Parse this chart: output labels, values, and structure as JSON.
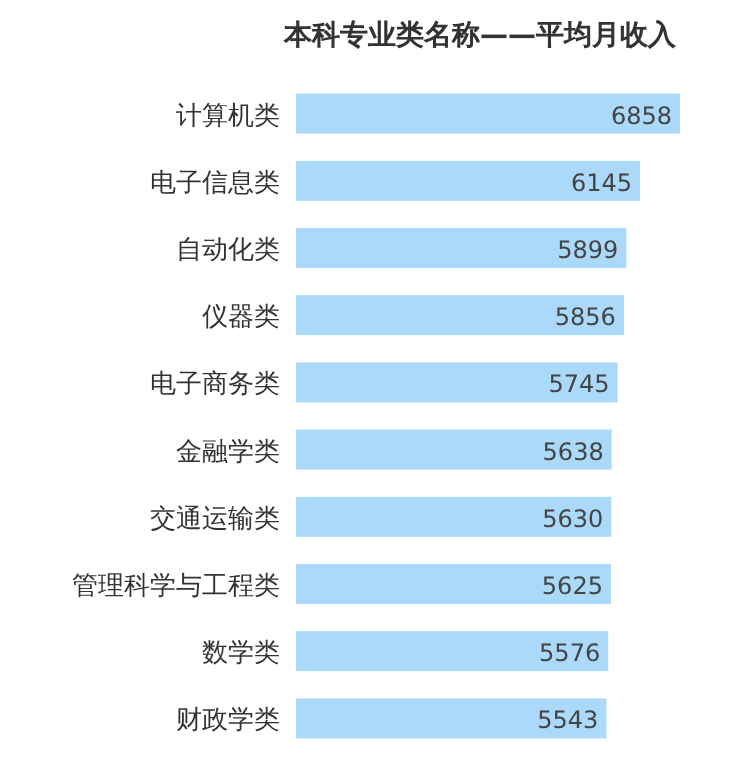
{
  "chart_data": {
    "type": "bar",
    "orientation": "horizontal",
    "title": "本科专业类名称——平均月收入",
    "categories": [
      "计算机类",
      "电子信息类",
      "自动化类",
      "仪器类",
      "电子商务类",
      "金融学类",
      "交通运输类",
      "管理科学与工程类",
      "数学类",
      "财政学类"
    ],
    "values": [
      6858,
      6145,
      5899,
      5856,
      5745,
      5638,
      5630,
      5625,
      5576,
      5543
    ],
    "color": "#aad9fa",
    "data_labels": true
  }
}
